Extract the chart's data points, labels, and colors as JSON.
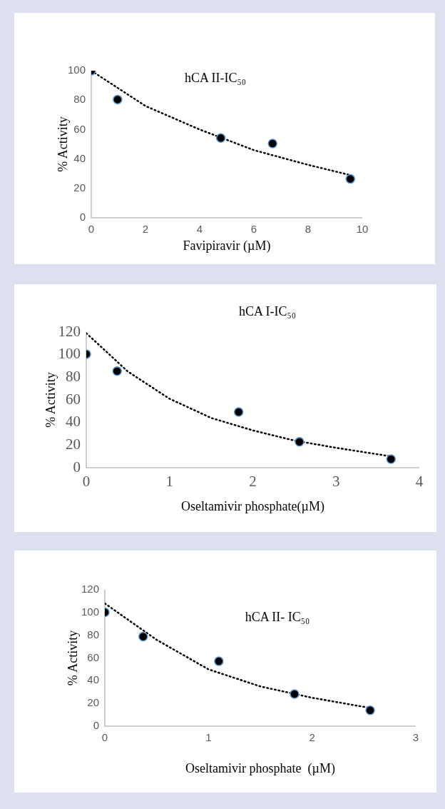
{
  "chart_data": [
    {
      "type": "scatter",
      "title": "hCA II-IC₅₀",
      "xlabel": "Favipiravir (µM)",
      "ylabel": "% Activity",
      "xlim": [
        0,
        10
      ],
      "xticks": [
        0,
        2,
        4,
        6,
        8,
        10
      ],
      "ylim": [
        0,
        100
      ],
      "yticks": [
        0,
        20,
        40,
        60,
        80,
        100
      ],
      "grid": false,
      "legend": false,
      "series": [
        {
          "type": "scatter",
          "color": "#000000",
          "marker": "circle",
          "x": [
            0,
            0.97,
            4.78,
            6.69,
            9.56
          ],
          "values": [
            100,
            80.4,
            54.2,
            50.5,
            26.4
          ]
        },
        {
          "type": "line",
          "color": "#000000",
          "marker": "none",
          "line_style": "dotted",
          "x": [
            0,
            2,
            4,
            6,
            8,
            9.56
          ],
          "values": [
            100,
            76,
            60,
            46,
            36,
            29
          ]
        }
      ]
    },
    {
      "type": "scatter",
      "title": "hCA I-IC₅₀",
      "xlabel": "Oseltamivir phosphate(µM)",
      "ylabel": "% Activity",
      "xlim": [
        0,
        4
      ],
      "xticks": [
        0,
        1,
        2,
        3,
        4
      ],
      "ylim": [
        0,
        120
      ],
      "yticks": [
        0,
        20,
        40,
        60,
        80,
        100,
        120
      ],
      "grid": false,
      "legend": false,
      "series": [
        {
          "type": "scatter",
          "color": "#000000",
          "marker": "circle",
          "x": [
            0,
            0.37,
            1.83,
            2.56,
            3.66
          ],
          "values": [
            100.5,
            85.4,
            49.3,
            22.9,
            7.6
          ]
        },
        {
          "type": "line",
          "color": "#000000",
          "marker": "none",
          "line_style": "dotted",
          "x": [
            0,
            0.5,
            1,
            1.5,
            2,
            2.5,
            3,
            3.66
          ],
          "values": [
            119,
            85,
            61,
            44,
            33,
            24,
            17.6,
            10
          ]
        }
      ]
    },
    {
      "type": "scatter",
      "title": "hCA II- IC₅₀",
      "xlabel": "Oseltamivir phosphate  (µM)",
      "ylabel": "% Activity",
      "xlim": [
        0,
        3
      ],
      "xticks": [
        0,
        1,
        2,
        3
      ],
      "ylim": [
        0,
        120
      ],
      "yticks": [
        0,
        20,
        40,
        60,
        80,
        100,
        120
      ],
      "grid": false,
      "legend": false,
      "series": [
        {
          "type": "scatter",
          "color": "#000000",
          "marker": "circle",
          "x": [
            0,
            0.37,
            1.1,
            1.83,
            2.56
          ],
          "values": [
            100.2,
            78.9,
            57.1,
            28.3,
            14
          ]
        },
        {
          "type": "line",
          "color": "#000000",
          "marker": "none",
          "line_style": "dotted",
          "x": [
            0,
            0.5,
            1,
            1.5,
            2,
            2.56
          ],
          "values": [
            108,
            76,
            50,
            35,
            25,
            16
          ]
        }
      ]
    }
  ]
}
